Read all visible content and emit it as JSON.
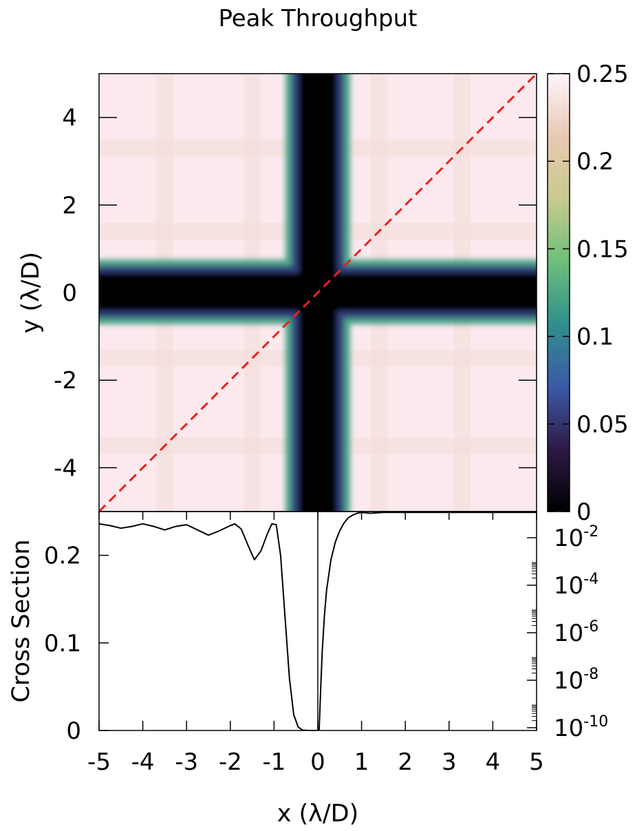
{
  "chart_data": [
    {
      "type": "heatmap",
      "title": "Peak Throughput",
      "xlabel": "",
      "ylabel": "y (λ/D)",
      "xlim": [
        -5,
        5
      ],
      "ylim": [
        -5,
        5
      ],
      "yticks": [
        4,
        2,
        0,
        -2,
        -4
      ],
      "ytick_labels": [
        "4",
        "2",
        "0",
        "-2",
        "-4"
      ],
      "colorbar": {
        "range": [
          0,
          0.25
        ],
        "ticks": [
          0.25,
          0.2,
          0.15,
          0.1,
          0.05,
          0
        ],
        "tick_labels": [
          "0.25",
          "0.2",
          "0.15",
          "0.1",
          "0.05",
          "0"
        ],
        "colors": [
          "#000000",
          "#2e1a47",
          "#3b5aa6",
          "#2f8f8c",
          "#6dbf7a",
          "#c9c98e",
          "#e8c9b4",
          "#fff5fb"
        ]
      },
      "features": {
        "cross_half_width": 0.5,
        "diagonal_line": {
          "from": [
            -5,
            -5
          ],
          "to": [
            5,
            5
          ],
          "color": "#e8211b",
          "style": "dashed"
        },
        "background_level": 0.23
      }
    },
    {
      "type": "line",
      "title": "",
      "xlabel": "x (λ/D)",
      "ylabel": "Cross Section",
      "xlim": [
        -5,
        5
      ],
      "ylim": [
        0,
        0.25
      ],
      "xticks": [
        -5,
        -4,
        -3,
        -2,
        -1,
        0,
        1,
        2,
        3,
        4,
        5
      ],
      "xtick_labels": [
        "-5",
        "-4",
        "-3",
        "-2",
        "-1",
        "0",
        "1",
        "2",
        "3",
        "4",
        "5"
      ],
      "yticks": [
        0.2,
        0.1,
        0
      ],
      "ytick_labels": [
        "0.2",
        "0.1",
        "0"
      ],
      "y2_log_ticks": [
        {
          "base": "10",
          "exp": "-2"
        },
        {
          "base": "10",
          "exp": "-4"
        },
        {
          "base": "10",
          "exp": "-6"
        },
        {
          "base": "10",
          "exp": "-8"
        },
        {
          "base": "10",
          "exp": "-10"
        }
      ],
      "series": [
        {
          "name": "",
          "x": [
            -5,
            -4.75,
            -4.5,
            -4.25,
            -4.0,
            -3.75,
            -3.5,
            -3.25,
            -3.0,
            -2.75,
            -2.5,
            -2.25,
            -2.0,
            -1.9,
            -1.75,
            -1.6,
            -1.45,
            -1.3,
            -1.15,
            -1.05,
            -0.95,
            -0.85,
            -0.75,
            -0.65,
            -0.55,
            -0.45,
            -0.35,
            -0.25,
            -0.15,
            -0.02
          ],
          "y": [
            0.236,
            0.234,
            0.231,
            0.233,
            0.236,
            0.233,
            0.229,
            0.233,
            0.235,
            0.229,
            0.223,
            0.228,
            0.234,
            0.236,
            0.23,
            0.212,
            0.195,
            0.205,
            0.225,
            0.236,
            0.235,
            0.2,
            0.13,
            0.06,
            0.018,
            0.004,
            0.0005,
            0.0001,
            0.0,
            0.0
          ]
        },
        {
          "name": "",
          "x": [
            0.03,
            0.06,
            0.1,
            0.15,
            0.2,
            0.3,
            0.4,
            0.5,
            0.6,
            0.7,
            0.8,
            0.9,
            1.0,
            1.2,
            1.5,
            2.0,
            2.5,
            3.0,
            3.5,
            4.0,
            4.5,
            5.0
          ],
          "y": [
            0.0,
            0.04,
            0.09,
            0.13,
            0.16,
            0.195,
            0.215,
            0.228,
            0.237,
            0.243,
            0.246,
            0.248,
            0.249,
            0.248,
            0.249,
            0.249,
            0.249,
            0.249,
            0.249,
            0.249,
            0.249,
            0.249
          ]
        }
      ]
    }
  ]
}
